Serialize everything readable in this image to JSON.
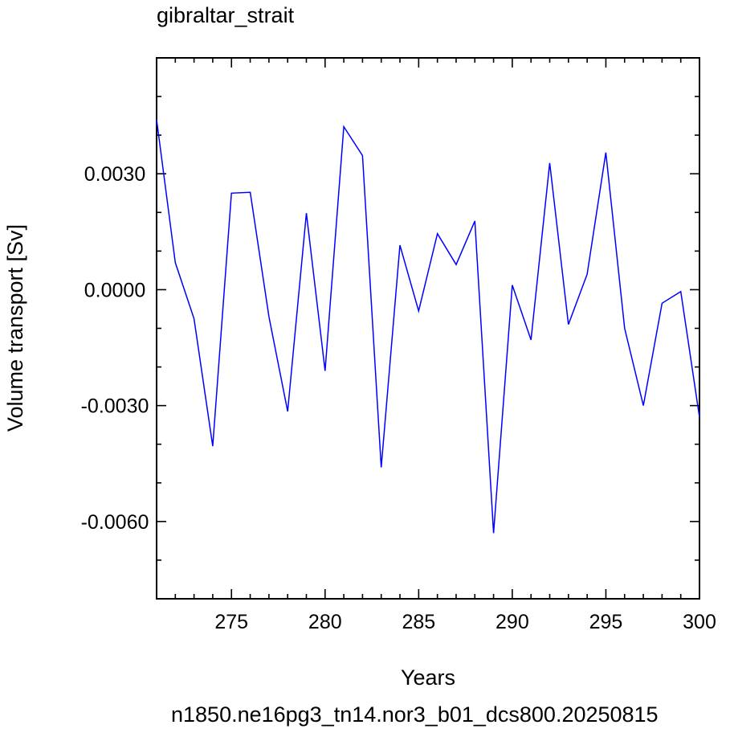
{
  "chart_data": {
    "type": "line",
    "title": "gibraltar_strait",
    "xlabel": "Years",
    "ylabel": "Volume transport [Sv]",
    "footer": "n1850.ne16pg3_tn14.nor3_b01_dcs800.20250815",
    "xlim": [
      271,
      300
    ],
    "ylim": [
      -0.008,
      0.006
    ],
    "x_ticks": [
      275,
      280,
      285,
      290,
      295,
      300
    ],
    "x_tick_labels": [
      "275",
      "280",
      "285",
      "290",
      "295",
      "300"
    ],
    "y_ticks": [
      -0.006,
      -0.003,
      0.0,
      0.003
    ],
    "y_tick_labels": [
      "-0.0060",
      "-0.0030",
      "0.0000",
      "0.0030"
    ],
    "line_color": "#0000ff",
    "footer_color": "#0000ff",
    "series": [
      {
        "x": [
          271,
          272,
          273,
          274,
          275,
          276,
          277,
          278,
          279,
          280,
          281,
          282,
          283,
          284,
          285,
          286,
          287,
          288,
          289,
          290,
          291,
          292,
          293,
          294,
          295,
          296,
          297,
          298,
          299,
          300
        ],
        "values": [
          0.0044,
          0.0007,
          -0.00075,
          -0.00405,
          0.0025,
          0.00252,
          -0.0007,
          -0.00315,
          0.00198,
          -0.0021,
          0.00422,
          0.00347,
          -0.0046,
          0.00115,
          -0.00055,
          0.00145,
          0.00065,
          0.00178,
          -0.0063,
          0.00012,
          -0.0013,
          0.00328,
          -0.0009,
          0.0004,
          0.00355,
          -0.001,
          -0.003,
          -0.00035,
          -5e-05,
          -0.0033
        ]
      }
    ]
  }
}
